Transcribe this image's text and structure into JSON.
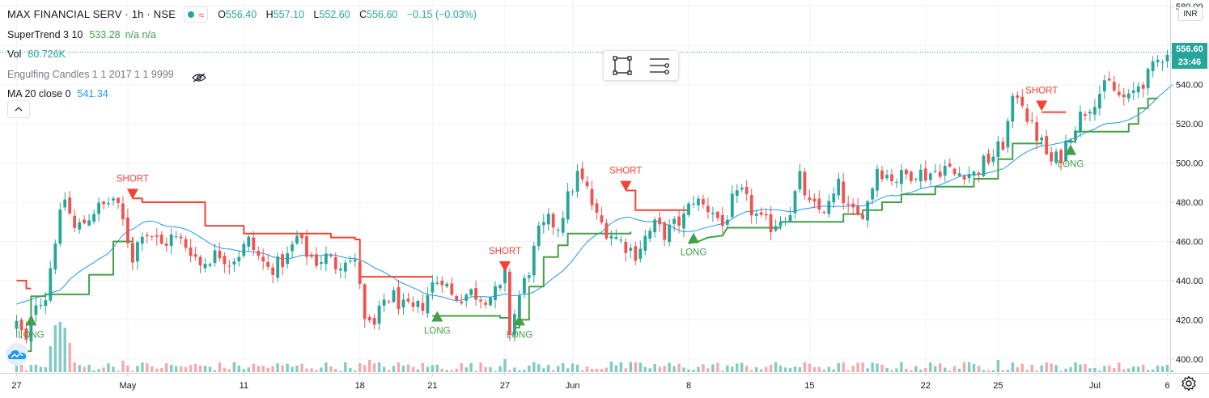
{
  "legend": {
    "symbol": "MAX FINANCIAL SERV · 1h · NSE",
    "ohlc": {
      "o_label": "O",
      "o": "556.40",
      "h_label": "H",
      "h": "557.10",
      "l_label": "L",
      "l": "552.60",
      "c_label": "C",
      "c": "556.60",
      "change": "−0.15 (−0.03%)"
    },
    "indicators": [
      {
        "name": "SuperTrend 3 10",
        "value": "533.28",
        "extra": "n/a  n/a"
      },
      {
        "name": "Vol",
        "value": "80.726K"
      },
      {
        "name": "Engulfing Candles 1 1 2017 1 1 9999"
      },
      {
        "name": "MA 20 close 0",
        "value": "541.34"
      }
    ]
  },
  "price_axis": {
    "currency": "INR",
    "last_price": "556.60",
    "countdown": "23:46"
  },
  "colors": {
    "up": "#26a69a",
    "down": "#ef5350",
    "vol_up": "#80cbc4",
    "vol_down": "#f7a9a7",
    "ma": "#2196f3",
    "st_up": "#43a047",
    "st_down": "#f44336",
    "grid": "#f0f3fa",
    "axis_text": "#131722"
  },
  "icons": {
    "rectangle_tool": "rectangle-select-icon",
    "settings_tool": "lines-settings-icon",
    "visibility": "eye-off-icon",
    "collapse": "chevron-up-icon",
    "logo": "tradingview-cloud-icon",
    "gear": "gear-icon"
  },
  "chart_data": {
    "type": "candlestick",
    "ylim": [
      390,
      582
    ],
    "yticks": [
      400,
      420,
      440,
      460,
      480,
      500,
      520,
      540,
      560,
      580
    ],
    "x_ticks": [
      {
        "label": "27",
        "i": 0
      },
      {
        "label": "May",
        "i": 23
      },
      {
        "label": "11",
        "i": 47
      },
      {
        "label": "18",
        "i": 71
      },
      {
        "label": "21",
        "i": 86
      },
      {
        "label": "27",
        "i": 101
      },
      {
        "label": "Jun",
        "i": 115
      },
      {
        "label": "8",
        "i": 139
      },
      {
        "label": "15",
        "i": 164
      },
      {
        "label": "22",
        "i": 188
      },
      {
        "label": "25",
        "i": 203
      },
      {
        "label": "Jul",
        "i": 223
      },
      {
        "label": "6",
        "i": 238
      }
    ],
    "anchors": [
      [
        0,
        418
      ],
      [
        2,
        408
      ],
      [
        4,
        430
      ],
      [
        6,
        432
      ],
      [
        8,
        462
      ],
      [
        10,
        482
      ],
      [
        12,
        466
      ],
      [
        14,
        470
      ],
      [
        16,
        476
      ],
      [
        18,
        478
      ],
      [
        20,
        482
      ],
      [
        22,
        470
      ],
      [
        24,
        452
      ],
      [
        26,
        466
      ],
      [
        28,
        463
      ],
      [
        30,
        458
      ],
      [
        32,
        462
      ],
      [
        34,
        460
      ],
      [
        36,
        456
      ],
      [
        38,
        448
      ],
      [
        40,
        452
      ],
      [
        42,
        454
      ],
      [
        44,
        450
      ],
      [
        46,
        454
      ],
      [
        48,
        460
      ],
      [
        50,
        452
      ],
      [
        52,
        446
      ],
      [
        54,
        448
      ],
      [
        56,
        452
      ],
      [
        58,
        462
      ],
      [
        60,
        454
      ],
      [
        62,
        450
      ],
      [
        64,
        452
      ],
      [
        66,
        448
      ],
      [
        68,
        452
      ],
      [
        70,
        448
      ],
      [
        71,
        440
      ],
      [
        72,
        418
      ],
      [
        74,
        416
      ],
      [
        76,
        430
      ],
      [
        78,
        432
      ],
      [
        80,
        426
      ],
      [
        82,
        424
      ],
      [
        84,
        428
      ],
      [
        86,
        438
      ],
      [
        88,
        442
      ],
      [
        90,
        432
      ],
      [
        92,
        432
      ],
      [
        94,
        434
      ],
      [
        96,
        432
      ],
      [
        98,
        432
      ],
      [
        100,
        435
      ],
      [
        101,
        442
      ],
      [
        102,
        414
      ],
      [
        104,
        432
      ],
      [
        106,
        446
      ],
      [
        108,
        464
      ],
      [
        110,
        470
      ],
      [
        112,
        468
      ],
      [
        114,
        482
      ],
      [
        116,
        494
      ],
      [
        118,
        486
      ],
      [
        120,
        472
      ],
      [
        122,
        466
      ],
      [
        124,
        462
      ],
      [
        126,
        458
      ],
      [
        128,
        454
      ],
      [
        130,
        462
      ],
      [
        132,
        468
      ],
      [
        134,
        464
      ],
      [
        136,
        468
      ],
      [
        138,
        472
      ],
      [
        140,
        482
      ],
      [
        142,
        478
      ],
      [
        144,
        476
      ],
      [
        146,
        468
      ],
      [
        148,
        480
      ],
      [
        150,
        484
      ],
      [
        152,
        476
      ],
      [
        154,
        470
      ],
      [
        156,
        468
      ],
      [
        158,
        472
      ],
      [
        160,
        476
      ],
      [
        162,
        492
      ],
      [
        164,
        478
      ],
      [
        166,
        476
      ],
      [
        168,
        478
      ],
      [
        170,
        488
      ],
      [
        172,
        476
      ],
      [
        174,
        472
      ],
      [
        176,
        480
      ],
      [
        178,
        498
      ],
      [
        180,
        494
      ],
      [
        182,
        492
      ],
      [
        184,
        494
      ],
      [
        186,
        496
      ],
      [
        188,
        494
      ],
      [
        190,
        496
      ],
      [
        192,
        498
      ],
      [
        194,
        494
      ],
      [
        196,
        496
      ],
      [
        198,
        494
      ],
      [
        200,
        500
      ],
      [
        202,
        504
      ],
      [
        204,
        510
      ],
      [
        206,
        530
      ],
      [
        207,
        536
      ],
      [
        208,
        532
      ],
      [
        209,
        524
      ],
      [
        210,
        518
      ],
      [
        212,
        510
      ],
      [
        214,
        500
      ],
      [
        216,
        504
      ],
      [
        218,
        516
      ],
      [
        220,
        524
      ],
      [
        222,
        530
      ],
      [
        224,
        536
      ],
      [
        226,
        540
      ],
      [
        228,
        534
      ],
      [
        230,
        532
      ],
      [
        232,
        540
      ],
      [
        234,
        544
      ],
      [
        236,
        552
      ],
      [
        238,
        558
      ],
      [
        239,
        556.6
      ]
    ],
    "supertrend": {
      "uptrend_segments": [
        [
          [
            0,
            404
          ],
          [
            3,
            404
          ],
          [
            3,
            432
          ],
          [
            6,
            432
          ],
          [
            6,
            433
          ],
          [
            15,
            433
          ],
          [
            15,
            443
          ],
          [
            20,
            443
          ],
          [
            20,
            460
          ],
          [
            24,
            460
          ],
          [
            24,
            462
          ]
        ],
        [
          [
            86,
            422
          ],
          [
            100,
            422
          ],
          [
            100,
            421
          ],
          [
            102,
            421
          ]
        ],
        [
          [
            103,
            416
          ],
          [
            104,
            416
          ],
          [
            104,
            420
          ],
          [
            106,
            420
          ],
          [
            106,
            437
          ],
          [
            109,
            437
          ],
          [
            109,
            452
          ],
          [
            112,
            452
          ],
          [
            112,
            458
          ],
          [
            114,
            458
          ],
          [
            114,
            464
          ],
          [
            127,
            464
          ],
          [
            127,
            465
          ]
        ],
        [
          [
            139,
            459
          ],
          [
            141,
            460
          ],
          [
            143,
            462
          ],
          [
            146,
            463
          ],
          [
            147,
            467
          ],
          [
            158,
            467
          ],
          [
            158,
            470
          ],
          [
            171,
            470
          ],
          [
            171,
            474
          ],
          [
            175,
            474
          ],
          [
            175,
            476
          ],
          [
            179,
            476
          ],
          [
            179,
            480
          ],
          [
            183,
            480
          ],
          [
            183,
            484
          ],
          [
            190,
            484
          ],
          [
            190,
            488
          ],
          [
            198,
            488
          ],
          [
            198,
            492
          ],
          [
            203,
            492
          ],
          [
            203,
            502
          ],
          [
            206,
            502
          ],
          [
            206,
            510
          ],
          [
            212,
            510
          ],
          [
            212,
            511
          ]
        ],
        [
          [
            217,
            511
          ],
          [
            219,
            511
          ],
          [
            219,
            516
          ],
          [
            230,
            516
          ],
          [
            230,
            520
          ],
          [
            232,
            520
          ],
          [
            232,
            528
          ],
          [
            234,
            528
          ],
          [
            234,
            533
          ],
          [
            236,
            533
          ]
        ]
      ],
      "downtrend_segments": [
        [
          [
            0,
            440
          ],
          [
            2,
            440
          ],
          [
            2,
            436
          ],
          [
            3,
            436
          ]
        ],
        [
          [
            24,
            482
          ],
          [
            26,
            482
          ],
          [
            26,
            480
          ],
          [
            39,
            480
          ],
          [
            39,
            468
          ],
          [
            47,
            468
          ],
          [
            47,
            464
          ],
          [
            65,
            464
          ],
          [
            65,
            462
          ],
          [
            70,
            462
          ],
          [
            70,
            461
          ],
          [
            71,
            461
          ],
          [
            71,
            442
          ],
          [
            86,
            442
          ]
        ],
        [
          [
            126,
            486
          ],
          [
            128,
            486
          ],
          [
            128,
            476
          ],
          [
            139,
            476
          ]
        ],
        [
          [
            212,
            526
          ],
          [
            217,
            526
          ]
        ]
      ]
    },
    "signals": [
      {
        "type": "SHORT",
        "i": 24,
        "price": 484
      },
      {
        "type": "SHORT",
        "i": 101,
        "price": 447
      },
      {
        "type": "SHORT",
        "i": 126,
        "price": 488
      },
      {
        "type": "SHORT",
        "i": 212,
        "price": 529
      },
      {
        "type": "LONG",
        "i": 3,
        "price": 420
      },
      {
        "type": "LONG",
        "i": 87,
        "price": 422
      },
      {
        "type": "LONG",
        "i": 104,
        "price": 420
      },
      {
        "type": "LONG",
        "i": 140,
        "price": 462
      },
      {
        "type": "LONG",
        "i": 218,
        "price": 507
      }
    ],
    "volume_max": 120,
    "volume_spikes": [
      [
        7,
        32
      ],
      [
        8,
        58
      ],
      [
        9,
        62
      ],
      [
        10,
        55
      ],
      [
        11,
        36
      ],
      [
        22,
        14
      ],
      [
        73,
        15
      ],
      [
        101,
        16
      ],
      [
        123,
        13
      ],
      [
        203,
        15
      ],
      [
        206,
        12
      ]
    ]
  }
}
